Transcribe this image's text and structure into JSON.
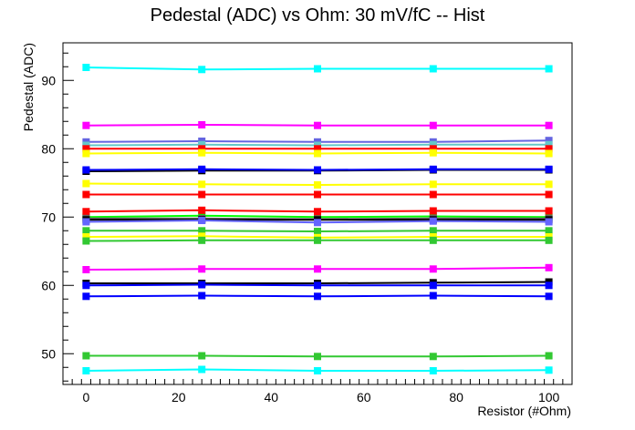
{
  "chart_data": {
    "type": "line",
    "title": "Pedestal (ADC) vs Ohm: 30 mV/fC -- Hist",
    "xlabel": "Resistor (#Ohm)",
    "ylabel": "Pedestal (ADC)",
    "xlim": [
      -5,
      105
    ],
    "ylim": [
      45.5,
      95.5
    ],
    "x_ticks": [
      0,
      20,
      40,
      60,
      80,
      100
    ],
    "y_ticks": [
      50,
      60,
      70,
      80,
      90
    ],
    "grid": false,
    "legend": "none",
    "x": [
      0,
      25,
      50,
      75,
      100
    ],
    "series": [
      {
        "color": "#00ffff",
        "values": [
          91.9,
          91.6,
          91.7,
          91.7,
          91.7
        ]
      },
      {
        "color": "#ff00ff",
        "values": [
          83.4,
          83.5,
          83.4,
          83.4,
          83.4
        ]
      },
      {
        "color": "#6464e0",
        "values": [
          81.0,
          81.1,
          81.0,
          81.0,
          81.2
        ]
      },
      {
        "color": "#64c8c8",
        "values": [
          80.5,
          80.6,
          80.5,
          80.6,
          80.6
        ]
      },
      {
        "color": "#ff0000",
        "values": [
          80.0,
          80.0,
          80.0,
          80.0,
          80.0
        ]
      },
      {
        "color": "#ffff00",
        "values": [
          79.3,
          79.4,
          79.3,
          79.4,
          79.3
        ]
      },
      {
        "color": "#000000",
        "values": [
          76.7,
          76.8,
          76.8,
          76.9,
          76.9
        ]
      },
      {
        "color": "#0000ff",
        "values": [
          76.9,
          77.0,
          76.9,
          77.0,
          77.0
        ]
      },
      {
        "color": "#ffff00",
        "values": [
          74.9,
          74.8,
          74.7,
          74.8,
          74.8
        ]
      },
      {
        "color": "#ff0000",
        "values": [
          73.3,
          73.3,
          73.3,
          73.3,
          73.3
        ]
      },
      {
        "color": "#00ff00",
        "values": [
          70.0,
          70.2,
          70.0,
          70.1,
          70.0
        ]
      },
      {
        "color": "#ff0000",
        "values": [
          70.8,
          71.0,
          70.8,
          70.9,
          70.9
        ]
      },
      {
        "color": "#646464",
        "values": [
          69.8,
          69.8,
          69.7,
          69.8,
          69.8
        ]
      },
      {
        "color": "#000000",
        "values": [
          69.6,
          69.6,
          69.6,
          69.6,
          69.6
        ]
      },
      {
        "color": "#6464ff",
        "values": [
          69.3,
          69.5,
          69.2,
          69.4,
          69.3
        ]
      },
      {
        "color": "#32c832",
        "values": [
          68.0,
          68.0,
          67.9,
          68.0,
          68.0
        ]
      },
      {
        "color": "#ffff00",
        "values": [
          67.1,
          67.2,
          67.0,
          67.1,
          67.1
        ]
      },
      {
        "color": "#32c832",
        "values": [
          66.5,
          66.6,
          66.6,
          66.6,
          66.6
        ]
      },
      {
        "color": "#ff00ff",
        "values": [
          62.3,
          62.4,
          62.4,
          62.4,
          62.6
        ]
      },
      {
        "color": "#000000",
        "values": [
          60.3,
          60.3,
          60.3,
          60.4,
          60.5
        ]
      },
      {
        "color": "#0000ff",
        "values": [
          60.0,
          60.1,
          60.0,
          60.0,
          60.0
        ]
      },
      {
        "color": "#0000ff",
        "values": [
          58.4,
          58.5,
          58.4,
          58.5,
          58.4
        ]
      },
      {
        "color": "#32c832",
        "values": [
          49.7,
          49.7,
          49.6,
          49.6,
          49.7
        ]
      },
      {
        "color": "#00ffff",
        "values": [
          47.5,
          47.7,
          47.5,
          47.5,
          47.6
        ]
      }
    ]
  }
}
